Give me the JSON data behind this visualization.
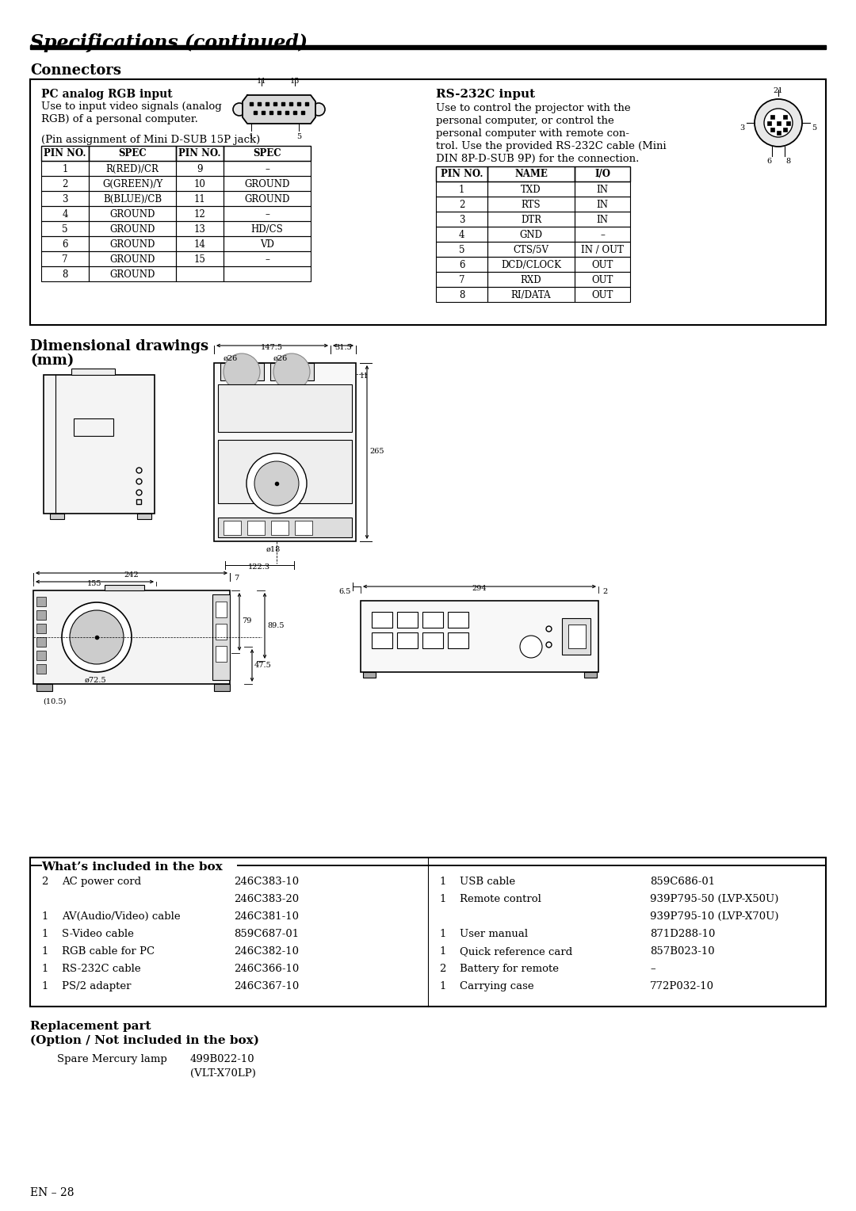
{
  "title": "Specifications (continued)",
  "bg_color": "#ffffff",
  "section_connectors": "Connectors",
  "pc_rgb_title": "PC analog RGB input",
  "pc_rgb_desc": [
    "Use to input video signals (analog",
    "RGB) of a personal computer.",
    "",
    "(Pin assignment of Mini D-SUB 15P jack)"
  ],
  "rs232_title": "RS-232C input",
  "rs232_desc": [
    "Use to control the projector with the",
    "personal computer, or control the",
    "personal computer with remote con-",
    "trol. Use the provided RS-232C cable (Mini",
    "DIN 8P-D-SUB 9P) for the connection."
  ],
  "pc_table_headers": [
    "PIN NO.",
    "SPEC",
    "PIN NO.",
    "SPEC"
  ],
  "pc_table_rows": [
    [
      "1",
      "R(RED)/CR",
      "9",
      "–"
    ],
    [
      "2",
      "G(GREEN)/Y",
      "10",
      "GROUND"
    ],
    [
      "3",
      "B(BLUE)/CB",
      "11",
      "GROUND"
    ],
    [
      "4",
      "GROUND",
      "12",
      "–"
    ],
    [
      "5",
      "GROUND",
      "13",
      "HD/CS"
    ],
    [
      "6",
      "GROUND",
      "14",
      "VD"
    ],
    [
      "7",
      "GROUND",
      "15",
      "–"
    ],
    [
      "8",
      "GROUND",
      "",
      ""
    ]
  ],
  "rs_table_headers": [
    "PIN NO.",
    "NAME",
    "I/O"
  ],
  "rs_table_rows": [
    [
      "1",
      "TXD",
      "IN"
    ],
    [
      "2",
      "RTS",
      "IN"
    ],
    [
      "3",
      "DTR",
      "IN"
    ],
    [
      "4",
      "GND",
      "–"
    ],
    [
      "5",
      "CTS/5V",
      "IN / OUT"
    ],
    [
      "6",
      "DCD/CLOCK",
      "OUT"
    ],
    [
      "7",
      "RXD",
      "OUT"
    ],
    [
      "8",
      "RI/DATA",
      "OUT"
    ]
  ],
  "section_dimensional": "Dimensional drawings",
  "section_dimensional2": "(mm)",
  "dim_labels": {
    "w1": "147.5",
    "w2": "31.5",
    "h": "265",
    "phi26a": "ø26",
    "phi26b": "ø26",
    "dim11": "11",
    "phi18": "ø18",
    "d_bottom": "122.3",
    "total_w": "242",
    "right7": "7",
    "inner_w": "155",
    "phi72": "ø72.5",
    "h79": "79",
    "h47": "47.5",
    "h89": "89.5",
    "feet": "(10.5)",
    "rear_left": "6.5",
    "rear_w": "294",
    "rear_right": "2"
  },
  "section_box": "What’s included in the box",
  "box_left_items": [
    [
      "2",
      "AC power cord",
      "246C383-10"
    ],
    [
      "",
      "",
      "246C383-20"
    ],
    [
      "1",
      "AV(Audio/Video) cable",
      "246C381-10"
    ],
    [
      "1",
      "S-Video cable",
      "859C687-01"
    ],
    [
      "1",
      "RGB cable for PC",
      "246C382-10"
    ],
    [
      "1",
      "RS-232C cable",
      "246C366-10"
    ],
    [
      "1",
      "PS/2 adapter",
      "246C367-10"
    ]
  ],
  "box_right_items": [
    [
      "1",
      "USB cable",
      "859C686-01"
    ],
    [
      "1",
      "Remote control",
      "939P795-50 (LVP-X50U)"
    ],
    [
      "",
      "",
      "939P795-10 (LVP-X70U)"
    ],
    [
      "1",
      "User manual",
      "871D288-10"
    ],
    [
      "1",
      "Quick reference card",
      "857B023-10"
    ],
    [
      "2",
      "Battery for remote",
      "–"
    ],
    [
      "1",
      "Carrying case",
      "772P032-10"
    ]
  ],
  "replacement_title": "Replacement part",
  "replacement_subtitle": "(Option / Not included in the box)",
  "replacement_item": "Spare Mercury lamp",
  "replacement_code1": "499B022-10",
  "replacement_code2": "(VLT-X70LP)",
  "page_number": "EN – 28"
}
